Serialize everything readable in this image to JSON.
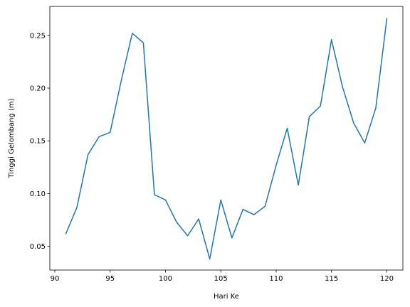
{
  "chart_data": {
    "type": "line",
    "title": "",
    "xlabel": "Hari Ke",
    "ylabel": "Tinggi Gelombang (m)",
    "xlim": [
      89.55,
      121.45
    ],
    "ylim": [
      0.0275,
      0.2775
    ],
    "xticks": [
      90,
      95,
      100,
      105,
      110,
      115,
      120
    ],
    "xtick_labels": [
      "90",
      "95",
      "100",
      "105",
      "110",
      "115",
      "120"
    ],
    "yticks": [
      0.05,
      0.1,
      0.15,
      0.2,
      0.25
    ],
    "ytick_labels": [
      "0.05",
      "0.10",
      "0.15",
      "0.20",
      "0.25"
    ],
    "grid": false,
    "legend": "none",
    "series": [
      {
        "color": "#1f77b4",
        "x": [
          91,
          92,
          93,
          94,
          95,
          96,
          97,
          98,
          99,
          100,
          101,
          102,
          103,
          104,
          105,
          106,
          107,
          108,
          109,
          110,
          111,
          112,
          113,
          114,
          115,
          116,
          117,
          118,
          119,
          120
        ],
        "y": [
          0.062,
          0.087,
          0.137,
          0.154,
          0.158,
          0.207,
          0.252,
          0.243,
          0.099,
          0.094,
          0.073,
          0.06,
          0.076,
          0.038,
          0.094,
          0.058,
          0.085,
          0.08,
          0.088,
          0.127,
          0.162,
          0.108,
          0.173,
          0.183,
          0.246,
          0.201,
          0.167,
          0.148,
          0.181,
          0.266
        ]
      }
    ]
  }
}
